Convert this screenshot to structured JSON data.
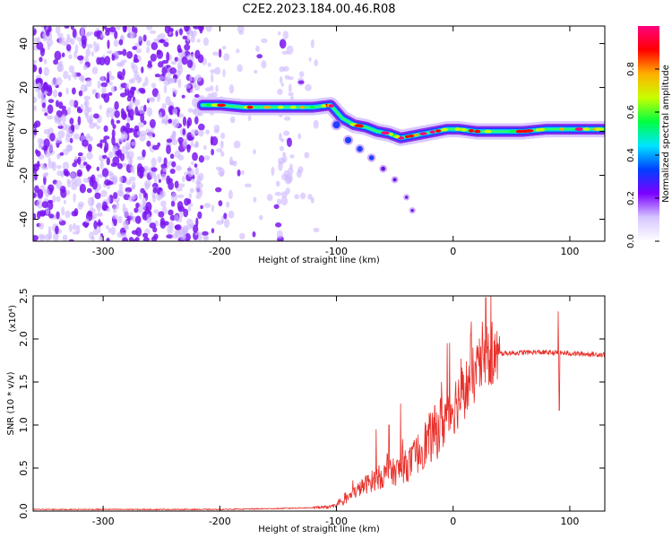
{
  "title": "C2E2.2023.184.00.46.R08",
  "chart_data": [
    {
      "type": "heatmap",
      "xlabel": "Height of straight line (km)",
      "ylabel": "Frequency (Hz)",
      "xlim": [
        -360,
        130
      ],
      "ylim": [
        -50,
        48
      ],
      "xticks": [
        -300,
        -200,
        -100,
        0,
        100
      ],
      "yticks": [
        40,
        20,
        0,
        -20,
        -40
      ],
      "colorbar": {
        "label": "Normalized spectral amplitude",
        "range": [
          0,
          1
        ],
        "ticks": [
          "0.0",
          "0.2",
          "0.4",
          "0.6",
          "0.8"
        ],
        "colormap": [
          "#ffffff",
          "#d6c6ff",
          "#7b00ff",
          "#0040ff",
          "#00e5ff",
          "#00ff40",
          "#c8ff00",
          "#ffb000",
          "#ff0000",
          "#ff0080"
        ]
      },
      "noise_region_x": [
        -360,
        -115
      ],
      "ridge": {
        "x": [
          -215,
          -200,
          -180,
          -160,
          -140,
          -120,
          -105,
          -95,
          -85,
          -75,
          -65,
          -55,
          -45,
          -35,
          -25,
          -15,
          -5,
          5,
          20,
          40,
          60,
          80,
          100,
          130
        ],
        "y": [
          12,
          12,
          11,
          11,
          11,
          11,
          12,
          6,
          3,
          2,
          0,
          -1,
          -3,
          -2,
          -1,
          0,
          1,
          1,
          0,
          0,
          0,
          1,
          1,
          1
        ]
      },
      "lower_branch": {
        "x": [
          -100,
          -90,
          -80,
          -70,
          -60,
          -50,
          -40,
          -35
        ],
        "y": [
          3,
          -4,
          -8,
          -12,
          -17,
          -22,
          -30,
          -36
        ]
      }
    },
    {
      "type": "line",
      "xlabel": "Height of straight line (km)",
      "ylabel": "SNR (10 * v/v)",
      "y_multiplier_label": "(x10⁴)",
      "xlim": [
        -360,
        130
      ],
      "ylim": [
        0,
        2.5
      ],
      "xticks": [
        -300,
        -200,
        -100,
        0,
        100
      ],
      "yticks": [
        "0.0",
        "0.5",
        "1.0",
        "1.5",
        "2.0",
        "2.5"
      ],
      "line_color": "#e8302a",
      "envelope": {
        "x": [
          -360,
          -200,
          -150,
          -120,
          -105,
          -95,
          -85,
          -75,
          -65,
          -55,
          -45,
          -35,
          -25,
          -15,
          -5,
          5,
          15,
          25,
          35,
          50,
          70,
          90,
          110,
          130
        ],
        "y": [
          0.02,
          0.02,
          0.03,
          0.04,
          0.05,
          0.1,
          0.22,
          0.32,
          0.4,
          0.45,
          0.5,
          0.6,
          0.8,
          0.95,
          1.15,
          1.35,
          1.55,
          1.75,
          1.83,
          1.84,
          1.85,
          1.84,
          1.83,
          1.82
        ]
      },
      "spikes": [
        {
          "x": -66,
          "y": 0.95
        },
        {
          "x": -55,
          "y": 1.0
        },
        {
          "x": -45,
          "y": 1.25
        },
        {
          "x": -10,
          "y": 1.5
        },
        {
          "x": -5,
          "y": 1.95
        },
        {
          "x": 15,
          "y": 2.05
        },
        {
          "x": 25,
          "y": 2.2
        },
        {
          "x": 28,
          "y": 2.48
        },
        {
          "x": 90,
          "y": 2.32
        },
        {
          "x": 91,
          "y": 1.17
        }
      ]
    }
  ]
}
